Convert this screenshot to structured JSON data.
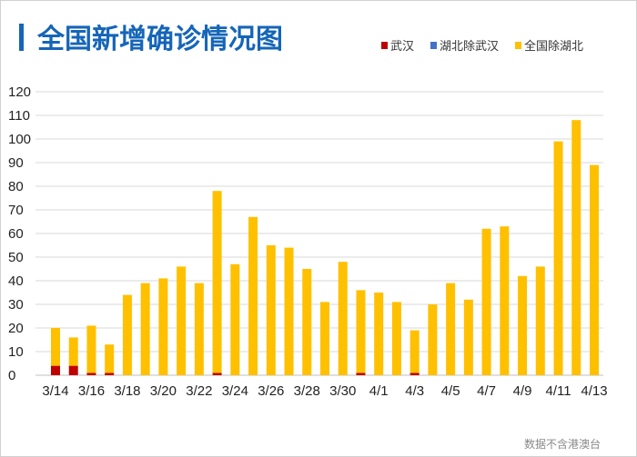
{
  "chart_data": {
    "type": "bar",
    "stacked": true,
    "title": "全国新增确诊情况图",
    "note": "数据不含港澳台",
    "categories": [
      "3/14",
      "3/15",
      "3/16",
      "3/17",
      "3/18",
      "3/19",
      "3/20",
      "3/21",
      "3/22",
      "3/23",
      "3/24",
      "3/25",
      "3/26",
      "3/27",
      "3/28",
      "3/29",
      "3/30",
      "3/31",
      "4/1",
      "4/2",
      "4/3",
      "4/4",
      "4/5",
      "4/6",
      "4/7",
      "4/8",
      "4/9",
      "4/10",
      "4/11",
      "4/12",
      "4/13"
    ],
    "x_tick_labels": [
      "3/14",
      "3/16",
      "3/18",
      "3/20",
      "3/22",
      "3/24",
      "3/26",
      "3/28",
      "3/30",
      "4/1",
      "4/3",
      "4/5",
      "4/7",
      "4/9",
      "4/11",
      "4/13"
    ],
    "series": [
      {
        "name": "武汉",
        "color": "#c00000",
        "values": [
          4,
          4,
          1,
          1,
          0,
          0,
          0,
          0,
          0,
          1,
          0,
          0,
          0,
          0,
          0,
          0,
          0,
          1,
          0,
          0,
          1,
          0,
          0,
          0,
          0,
          0,
          0,
          0,
          0,
          0,
          0
        ]
      },
      {
        "name": "湖北除武汉",
        "color": "#4472c4",
        "values": [
          0,
          0,
          0,
          0,
          0,
          0,
          0,
          0,
          0,
          0,
          0,
          0,
          0,
          0,
          0,
          0,
          0,
          0,
          0,
          0,
          0,
          0,
          0,
          0,
          0,
          0,
          0,
          0,
          0,
          0,
          0
        ]
      },
      {
        "name": "全国除湖北",
        "color": "#ffc000",
        "values": [
          16,
          12,
          20,
          12,
          34,
          39,
          41,
          46,
          39,
          77,
          47,
          67,
          55,
          54,
          45,
          31,
          48,
          35,
          35,
          31,
          18,
          30,
          39,
          32,
          62,
          63,
          42,
          46,
          99,
          108,
          89
        ]
      }
    ],
    "ylim": [
      0,
      120
    ],
    "yticks": [
      0,
      10,
      20,
      30,
      40,
      50,
      60,
      70,
      80,
      90,
      100,
      110,
      120
    ],
    "grid": true,
    "legend": "top-right",
    "title_color": "#1565b8"
  }
}
